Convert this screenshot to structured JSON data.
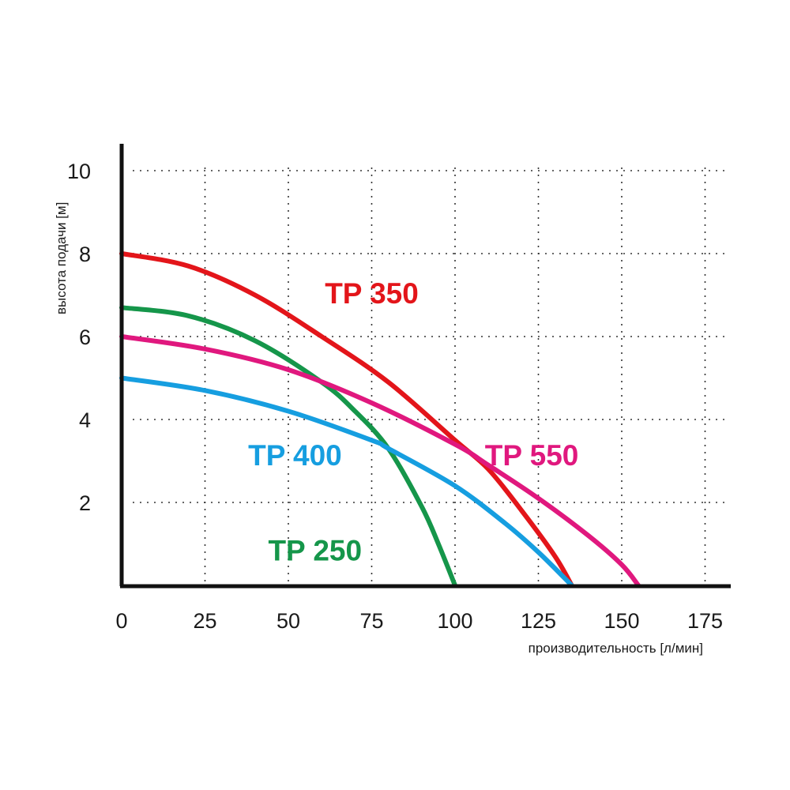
{
  "chart_data": {
    "type": "line",
    "xlabel": "производительность [л/мин]",
    "ylabel": "высота подачи [м]",
    "xlim": [
      0,
      182
    ],
    "ylim": [
      0,
      10.5
    ],
    "x_ticks": [
      "0",
      "25",
      "50",
      "75",
      "100",
      "125",
      "150",
      "175"
    ],
    "y_ticks": [
      "2",
      "4",
      "6",
      "8",
      "10"
    ],
    "grid": true,
    "legend": "none",
    "series": [
      {
        "name": "TP 350",
        "color": "#e3151a",
        "x": [
          0,
          20,
          40,
          60,
          80,
          100,
          110,
          120,
          130,
          135
        ],
        "y": [
          8.0,
          7.7,
          7.0,
          6.0,
          4.9,
          3.5,
          2.8,
          1.8,
          0.7,
          0
        ]
      },
      {
        "name": "TP 250",
        "color": "#15964a",
        "x": [
          0,
          20,
          40,
          60,
          70,
          80,
          90,
          95,
          100
        ],
        "y": [
          6.7,
          6.5,
          5.9,
          4.9,
          4.2,
          3.3,
          1.9,
          1.0,
          0
        ]
      },
      {
        "name": "TP 550",
        "color": "#e0187e",
        "x": [
          0,
          25,
          50,
          75,
          100,
          110,
          125,
          140,
          150,
          155
        ],
        "y": [
          6.0,
          5.7,
          5.2,
          4.4,
          3.4,
          2.9,
          2.1,
          1.2,
          0.5,
          0
        ]
      },
      {
        "name": "TP 400",
        "color": "#169ee0",
        "x": [
          0,
          25,
          50,
          75,
          80,
          100,
          115,
          125,
          135
        ],
        "y": [
          5.0,
          4.7,
          4.2,
          3.5,
          3.3,
          2.4,
          1.5,
          0.8,
          0
        ]
      }
    ],
    "annotations": [
      {
        "series": 0,
        "text": "TP 350",
        "x": 75,
        "y": 6.8
      },
      {
        "series": 3,
        "text": "TP 400",
        "x": 52,
        "y": 2.9
      },
      {
        "series": 2,
        "text": "TP 550",
        "x": 123,
        "y": 2.9
      },
      {
        "series": 1,
        "text": "TP 250",
        "x": 58,
        "y": 0.6
      }
    ]
  }
}
